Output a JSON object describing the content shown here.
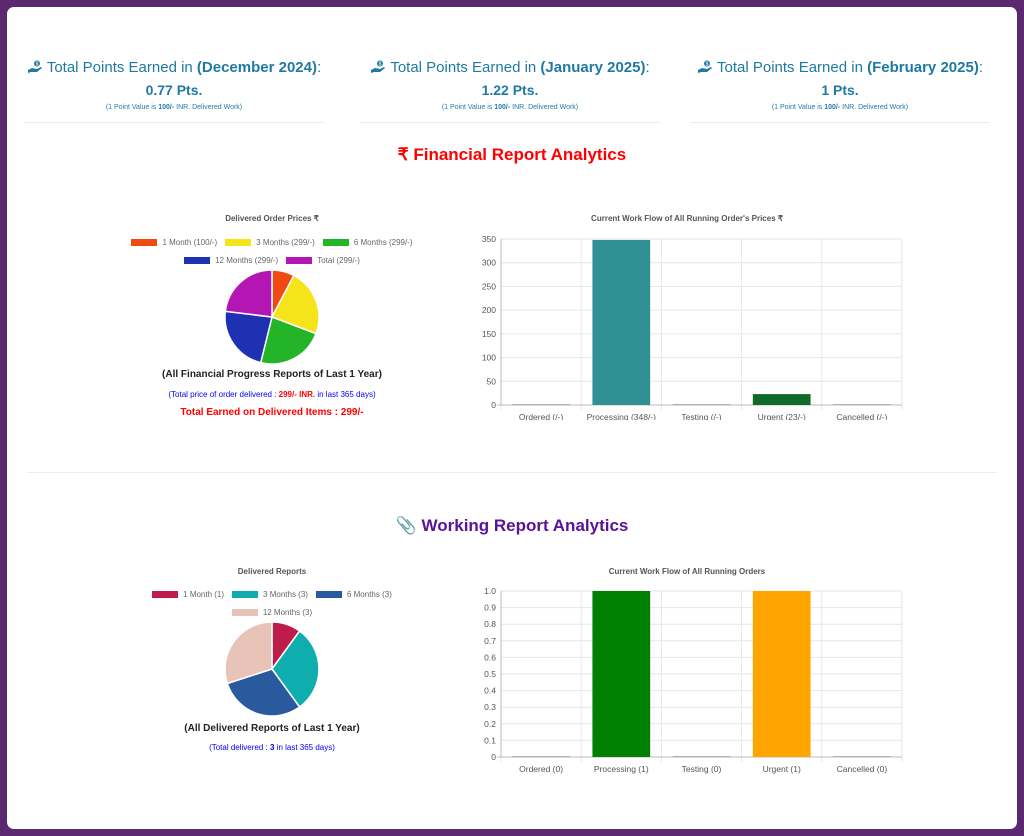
{
  "points": [
    {
      "prefix": "Total Points Earned in ",
      "period": "(December 2024)",
      "suffix": ":",
      "value": "0.77 Pts.",
      "note_prefix": "(1 Point Value is ",
      "note_value": "100/-",
      "note_suffix": " INR. Delivered Work)"
    },
    {
      "prefix": "Total Points Earned in ",
      "period": "(January 2025)",
      "suffix": ":",
      "value": "1.22 Pts.",
      "note_prefix": "(1 Point Value is ",
      "note_value": "100/-",
      "note_suffix": " INR. Delivered Work)"
    },
    {
      "prefix": "Total Points Earned in ",
      "period": "(February 2025)",
      "suffix": ":",
      "value": "1 Pts.",
      "note_prefix": "(1 Point Value is ",
      "note_value": "100/-",
      "note_suffix": " INR. Delivered Work)"
    }
  ],
  "financial": {
    "title": "₹ Financial Report Analytics",
    "pie_title": "Delivered Order Prices ₹",
    "caption": "(All Financial Progress Reports of Last 1 Year)",
    "total_prefix": "(Total price of order delivered : ",
    "total_value": "299/- INR.",
    "total_suffix": " in last 365 days)",
    "earned": "Total Earned on Delivered Items : 299/-",
    "bar_title": "Current Work Flow of All Running Order's Prices ₹"
  },
  "working": {
    "title": "📎 Working Report Analytics",
    "pie_title": "Delivered Reports",
    "caption": "(All Delivered Reports of Last 1 Year)",
    "total_prefix": "(Total delivered : ",
    "total_value": "3",
    "total_suffix": " in last 365 days)",
    "bar_title": "Current Work Flow of All Running Orders"
  },
  "colors": {
    "brand": "#1f7aa3",
    "red": "#ff0000",
    "purple": "#5a1296",
    "blue": "#0000ff"
  },
  "chart_data": [
    {
      "type": "pie",
      "title": "Delivered Order Prices ₹",
      "legend": "top",
      "categories": [
        "1 Month (100/-)",
        "3 Months (299/-)",
        "6 Months (299/-)",
        "12 Months (299/-)",
        "Total (299/-)"
      ],
      "values": [
        100,
        299,
        299,
        299,
        299
      ],
      "colors": [
        "#f04a12",
        "#f5e419",
        "#24b427",
        "#1e31b3",
        "#b416b4"
      ]
    },
    {
      "type": "bar",
      "title": "Current Work Flow of All Running Order's Prices ₹",
      "categories": [
        "Ordered (/-)",
        "Processing (348/-)",
        "Testing (/-)",
        "Urgent (23/-)",
        "Cancelled (/-)"
      ],
      "values": [
        0,
        348,
        0,
        23,
        0
      ],
      "colors": [
        "#b0b0b0",
        "#319094",
        "#b0b0b0",
        "#0f6b2a",
        "#b0b0b0"
      ],
      "ylim": [
        0,
        350
      ],
      "yticks": [
        0,
        50,
        100,
        150,
        200,
        250,
        300,
        350
      ],
      "grid": true
    },
    {
      "type": "pie",
      "title": "Delivered Reports",
      "legend": "top",
      "categories": [
        "1 Month (1)",
        "3 Months (3)",
        "6 Months (3)",
        "12 Months (3)"
      ],
      "values": [
        1,
        3,
        3,
        3
      ],
      "colors": [
        "#be1d4b",
        "#0fadad",
        "#2a5a9e",
        "#e8c3b8"
      ]
    },
    {
      "type": "bar",
      "title": "Current Work Flow of All Running Orders",
      "categories": [
        "Ordered (0)",
        "Processing (1)",
        "Testing (0)",
        "Urgent (1)",
        "Cancelled (0)"
      ],
      "values": [
        0,
        1,
        0,
        1,
        0
      ],
      "colors": [
        "#b0b0b0",
        "#008000",
        "#b0b0b0",
        "#ffa500",
        "#b0b0b0"
      ],
      "ylim": [
        0,
        1
      ],
      "yticks": [
        0,
        0.1,
        0.2,
        0.3,
        0.4,
        0.5,
        0.6,
        0.7,
        0.8,
        0.9,
        1.0
      ],
      "ytick_labels": [
        "0",
        "0.1",
        "0.2",
        "0.3",
        "0.4",
        "0.5",
        "0.6",
        "0.7",
        "0.8",
        "0.9",
        "1.0"
      ],
      "grid": true
    }
  ]
}
